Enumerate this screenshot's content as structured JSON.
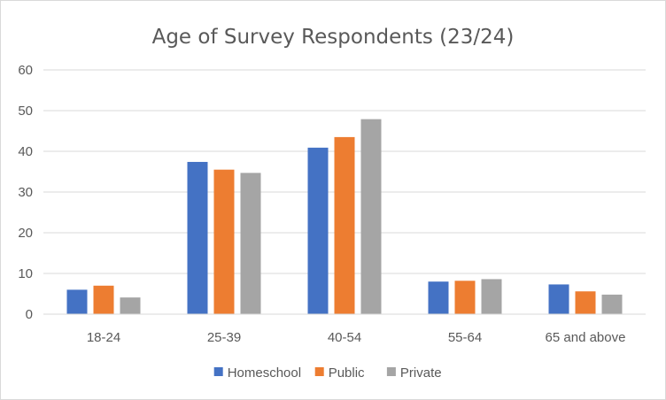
{
  "chart_data": {
    "type": "bar",
    "title": "Age of Survey Respondents (23/24)",
    "xlabel": "",
    "ylabel": "",
    "categories": [
      "18-24",
      "25-39",
      "40-54",
      "55-64",
      "65 and above"
    ],
    "series": [
      {
        "name": "Homeschool",
        "color": "#4472c4",
        "values": [
          6.0,
          37.4,
          40.9,
          8.0,
          7.3
        ]
      },
      {
        "name": "Public",
        "color": "#ed7d31",
        "values": [
          7.0,
          35.5,
          43.5,
          8.2,
          5.6
        ]
      },
      {
        "name": "Private",
        "color": "#a5a5a5",
        "values": [
          4.1,
          34.7,
          47.9,
          8.6,
          4.8
        ]
      }
    ],
    "ylim": [
      0,
      60
    ],
    "yticks": [
      0,
      10,
      20,
      30,
      40,
      50,
      60
    ],
    "grid": true,
    "legend_position": "bottom"
  }
}
